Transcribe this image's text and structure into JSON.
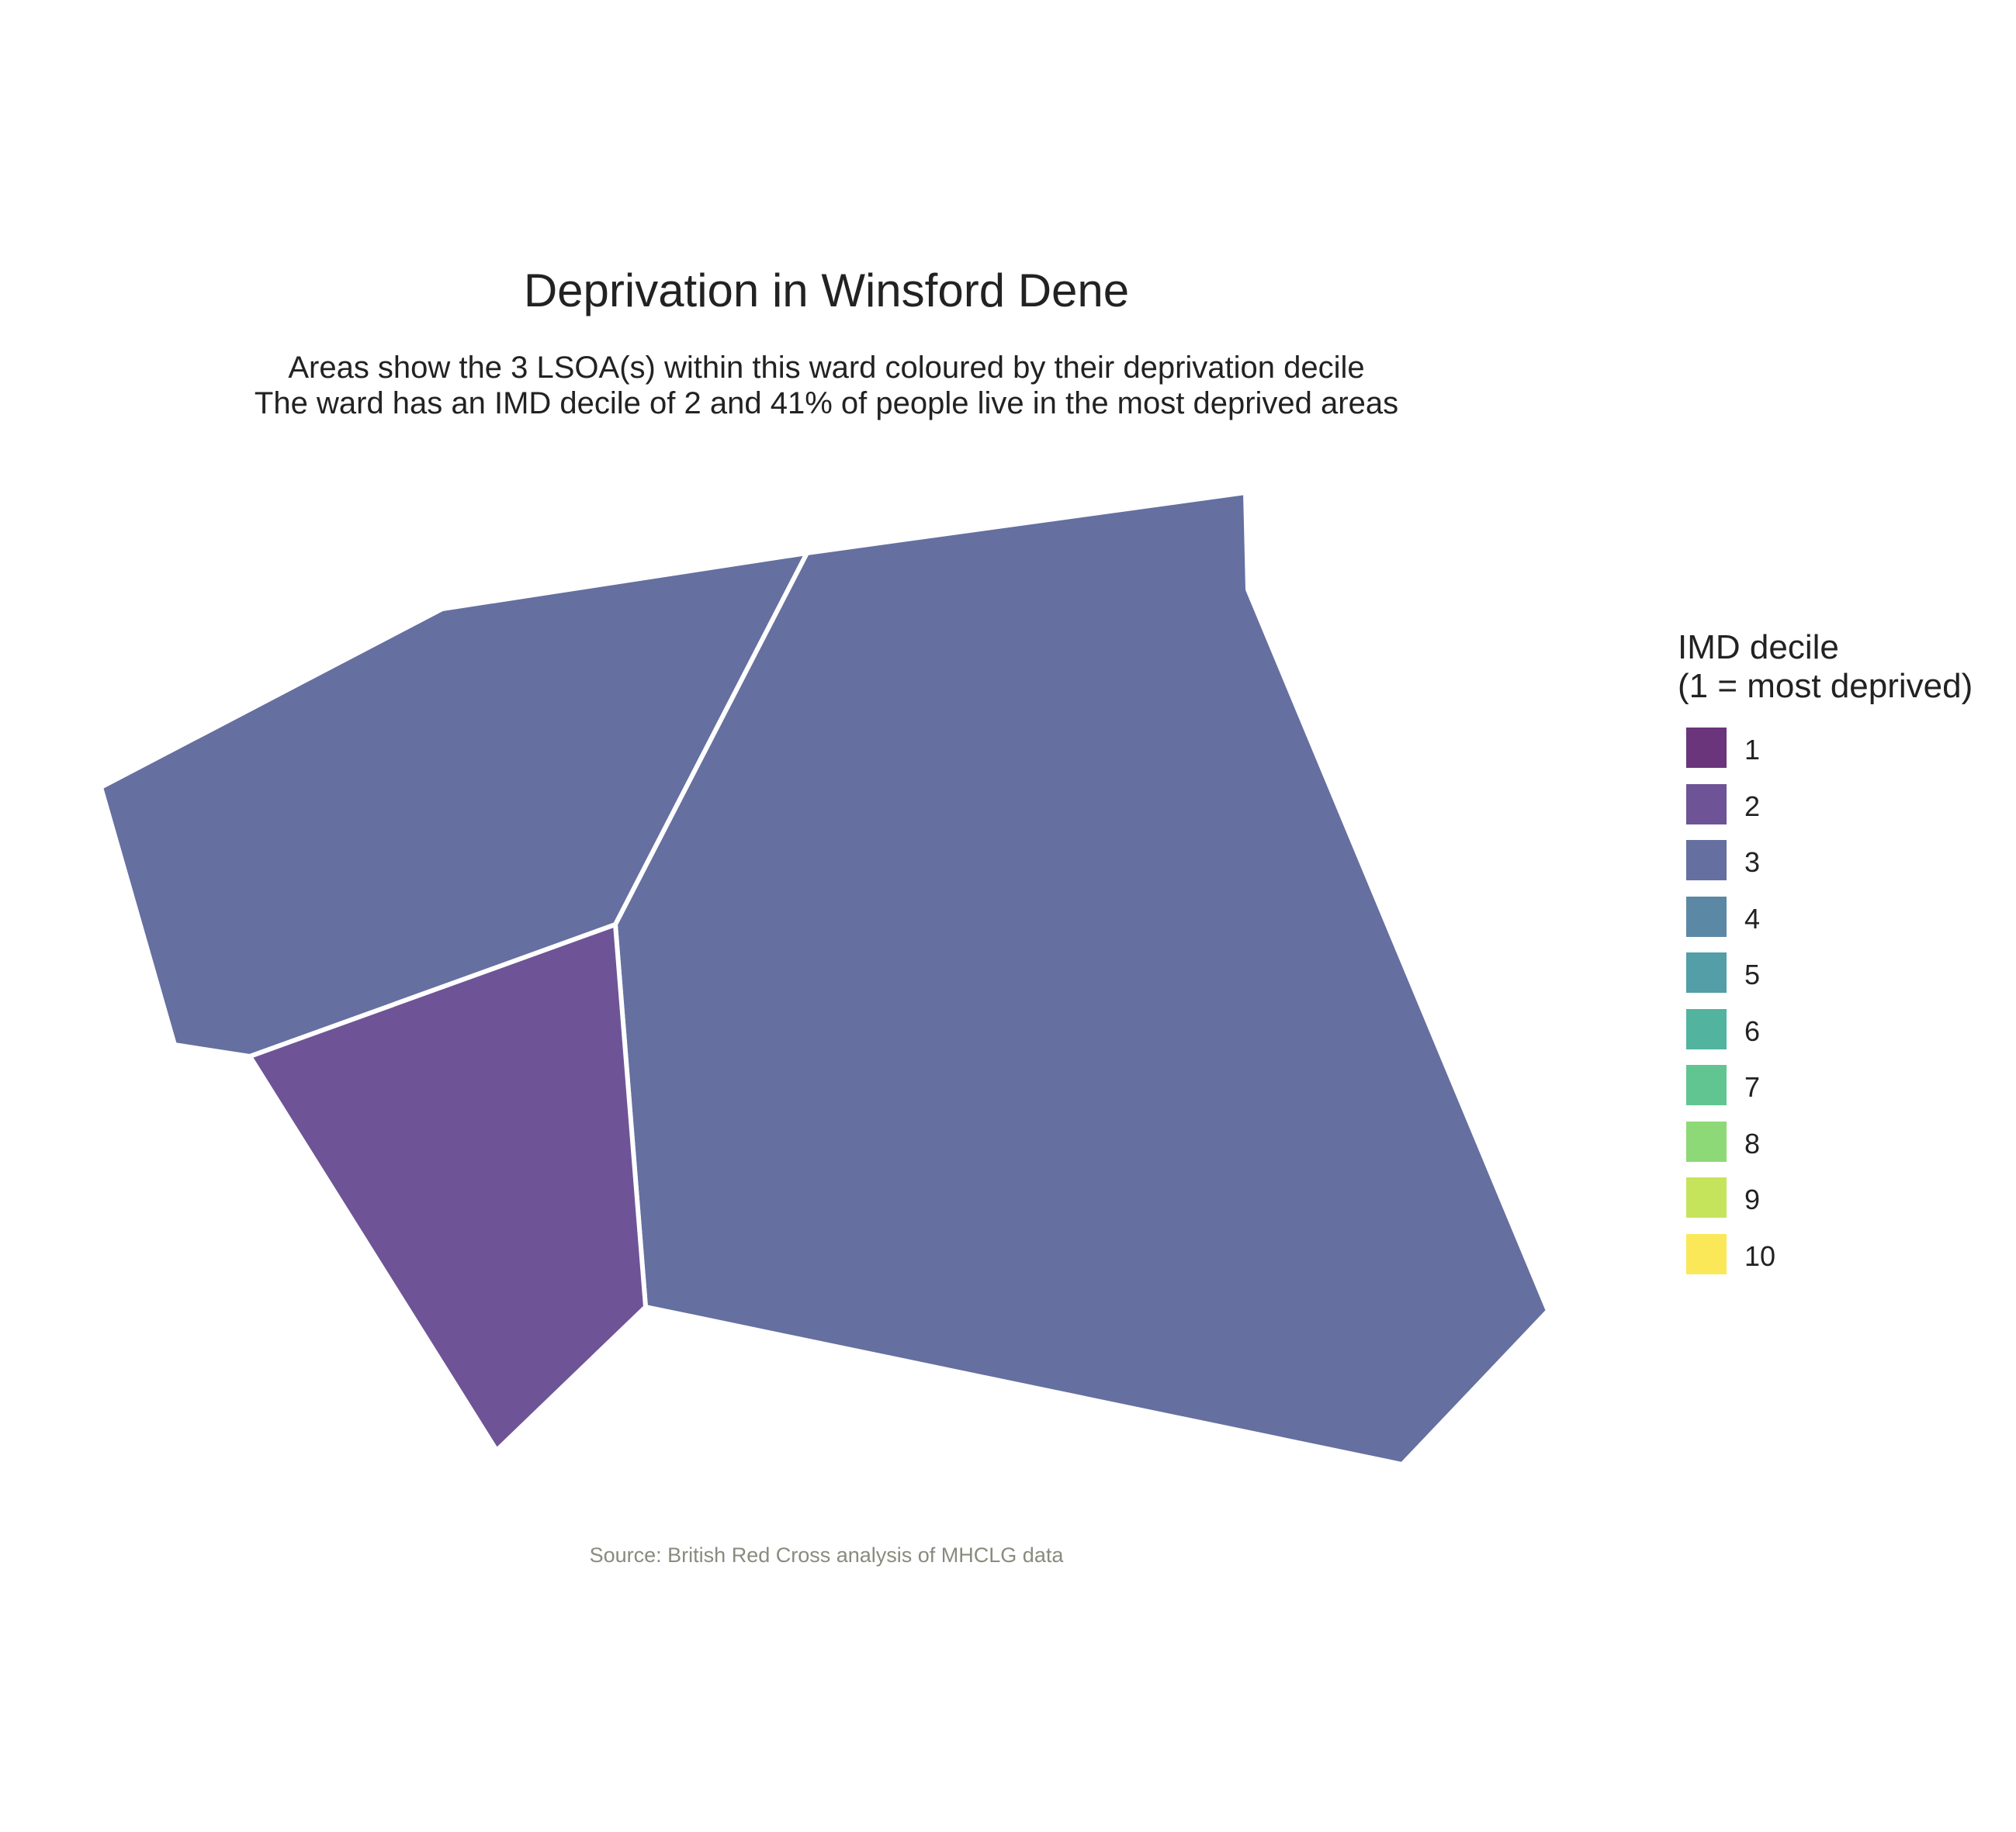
{
  "title": "Deprivation in Winsford Dene",
  "subtitle_line1": "Areas show the 3 LSOA(s) within this ward coloured by their deprivation decile",
  "subtitle_line2": "The ward has an IMD decile of 2 and 41% of people live in the most deprived areas",
  "caption": "Source: British Red Cross analysis of MHCLG data",
  "legend": {
    "title_line1": "IMD decile",
    "title_line2": "(1 = most deprived)",
    "items": [
      {
        "label": "1",
        "color": "#6a357a"
      },
      {
        "label": "2",
        "color": "#6e5496"
      },
      {
        "label": "3",
        "color": "#656fa0"
      },
      {
        "label": "4",
        "color": "#5b88a5"
      },
      {
        "label": "5",
        "color": "#539ea7"
      },
      {
        "label": "6",
        "color": "#52b39f"
      },
      {
        "label": "7",
        "color": "#61c591"
      },
      {
        "label": "8",
        "color": "#8ed977"
      },
      {
        "label": "9",
        "color": "#c5e45c"
      },
      {
        "label": "10",
        "color": "#fbe858"
      }
    ]
  },
  "map_data": {
    "areas": [
      {
        "name": "LSOA north-west",
        "decile": 3
      },
      {
        "name": "LSOA east",
        "decile": 3
      },
      {
        "name": "LSOA south-west",
        "decile": 2
      }
    ]
  }
}
